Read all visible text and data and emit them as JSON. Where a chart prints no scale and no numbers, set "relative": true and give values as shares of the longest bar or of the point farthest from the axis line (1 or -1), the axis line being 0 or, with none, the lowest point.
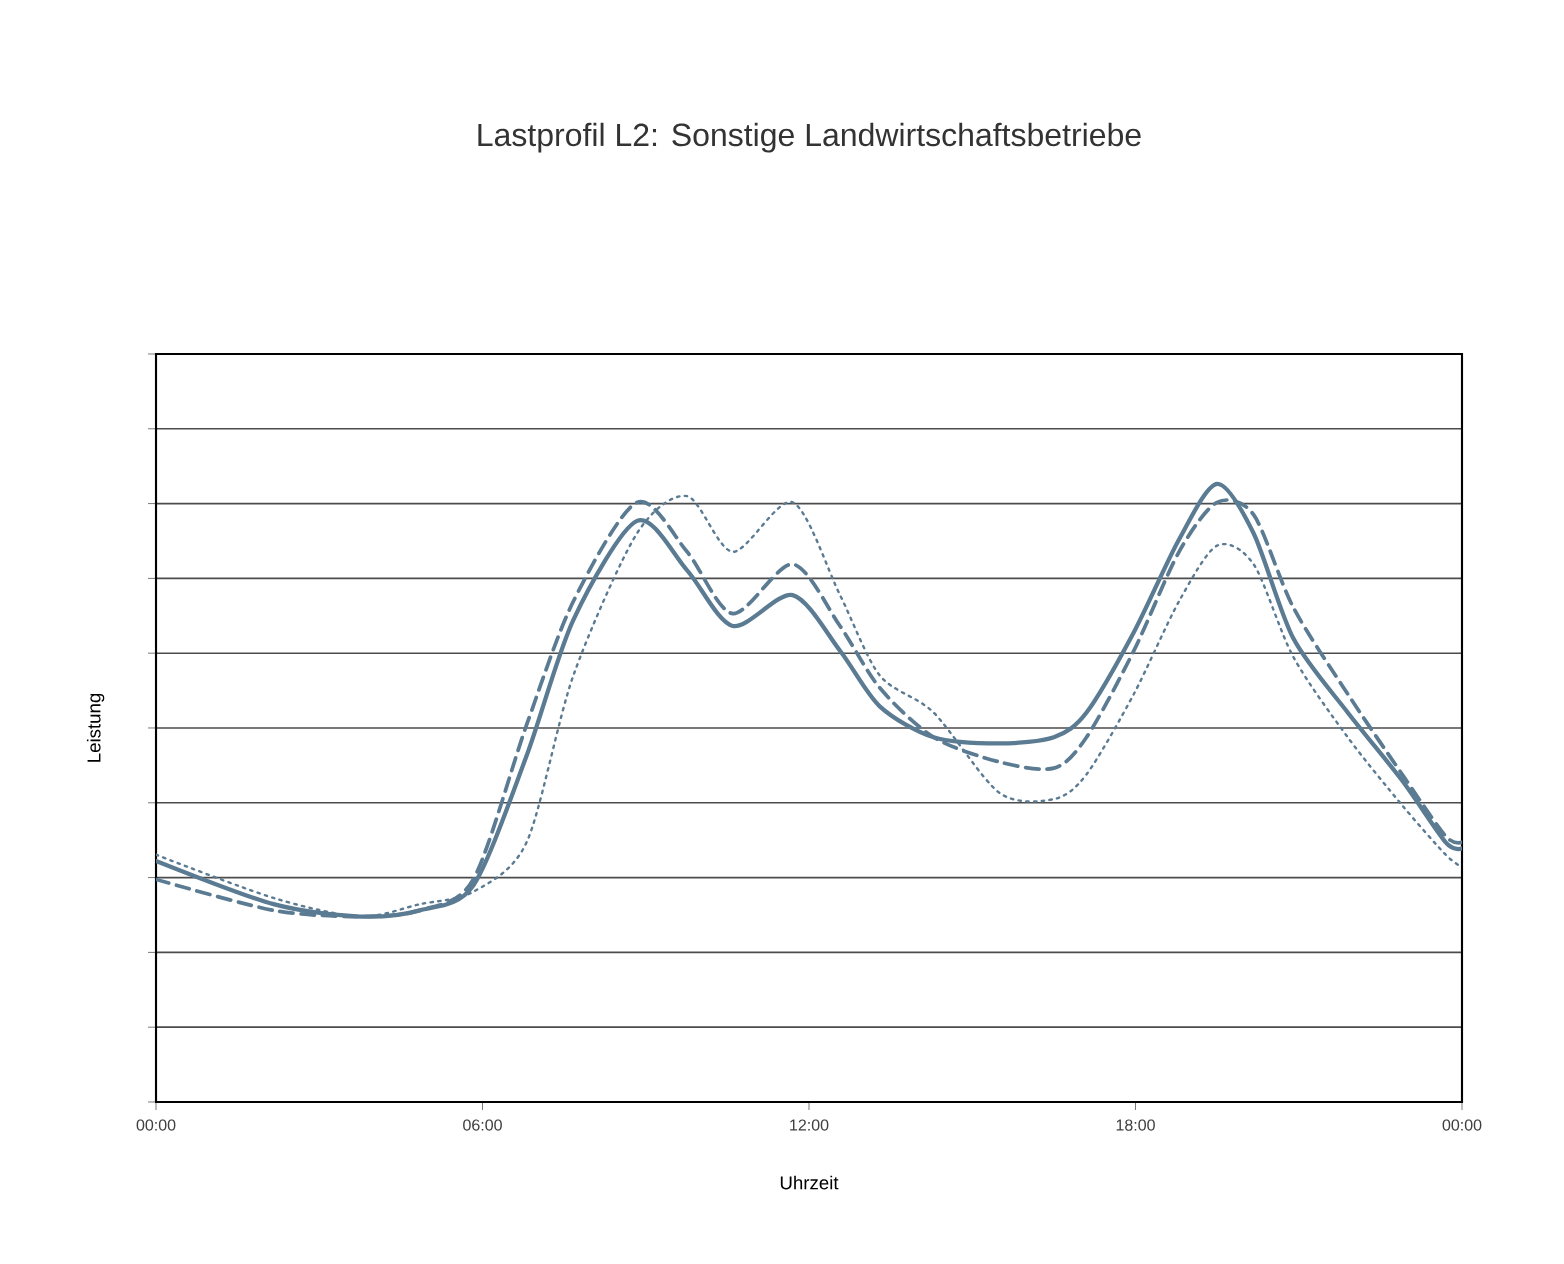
{
  "chart_data": {
    "type": "line",
    "title": "Lastprofil L2: Sonstige Landwirtschaftsbetriebe",
    "xlabel": "Uhrzeit",
    "ylabel": "Leistung",
    "relative": true,
    "grid": "y",
    "tick_labels": "x",
    "xlim": [
      0,
      24
    ],
    "xticks": [
      {
        "value": 0,
        "label": "00:00"
      },
      {
        "value": 6,
        "label": "06:00"
      },
      {
        "value": 12,
        "label": "12:00"
      },
      {
        "value": 18,
        "label": "18:00"
      },
      {
        "value": 24,
        "label": "00:00"
      }
    ],
    "x": [
      0,
      2.16,
      3.75,
      4.85,
      5.83,
      6.81,
      7.67,
      8.84,
      9.76,
      10.6,
      11.7,
      12.57,
      13.3,
      14.29,
      15.5,
      16.5,
      17.1,
      17.97,
      18.8,
      19.5,
      20.17,
      20.9,
      21.9,
      22.9,
      23.7,
      24
    ],
    "series": [
      {
        "color": "#5b7b93",
        "line_style": "solid",
        "values": [
          0.39,
          0.32,
          0.3,
          0.31,
          0.35,
          0.56,
          0.78,
          0.94,
          0.86,
          0.77,
          0.82,
          0.73,
          0.64,
          0.59,
          0.58,
          0.59,
          0.63,
          0.76,
          0.91,
          1.0,
          0.92,
          0.75,
          0.63,
          0.52,
          0.42,
          0.41
        ]
      },
      {
        "color": "#5b7b93",
        "line_style": "dashed",
        "values": [
          0.36,
          0.31,
          0.3,
          0.31,
          0.36,
          0.61,
          0.81,
          0.97,
          0.89,
          0.79,
          0.87,
          0.77,
          0.67,
          0.59,
          0.55,
          0.54,
          0.59,
          0.73,
          0.89,
          0.97,
          0.95,
          0.8,
          0.66,
          0.53,
          0.43,
          0.42
        ]
      },
      {
        "color": "#5b7b93",
        "line_style": "dotted",
        "values": [
          0.4,
          0.33,
          0.3,
          0.32,
          0.34,
          0.42,
          0.69,
          0.92,
          0.98,
          0.89,
          0.97,
          0.82,
          0.69,
          0.63,
          0.5,
          0.49,
          0.53,
          0.66,
          0.81,
          0.9,
          0.87,
          0.72,
          0.59,
          0.48,
          0.4,
          0.38
        ]
      }
    ]
  }
}
